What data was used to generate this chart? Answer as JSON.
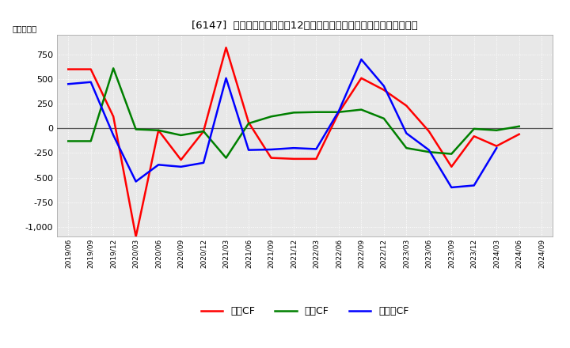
{
  "title": "[6147]  キャッシュフローの12か月移動合計の対前年同期増減額の推移",
  "ylabel": "（百万円）",
  "background_color": "#ffffff",
  "plot_bg_color": "#e8e8e8",
  "grid_color": "#ffffff",
  "x_labels": [
    "2019/06",
    "2019/09",
    "2019/12",
    "2020/03",
    "2020/06",
    "2020/09",
    "2020/12",
    "2021/03",
    "2021/06",
    "2021/09",
    "2021/12",
    "2022/03",
    "2022/06",
    "2022/09",
    "2022/12",
    "2023/03",
    "2023/06",
    "2023/09",
    "2023/12",
    "2024/03",
    "2024/06",
    "2024/09"
  ],
  "eigyo_cf": [
    600,
    600,
    120,
    -1100,
    -20,
    -320,
    -30,
    820,
    60,
    -300,
    -310,
    -310,
    160,
    510,
    390,
    230,
    -30,
    -390,
    -80,
    -180,
    -60,
    null
  ],
  "toshi_cf": [
    -130,
    -130,
    610,
    -10,
    -20,
    -70,
    -30,
    -300,
    50,
    120,
    160,
    165,
    165,
    190,
    100,
    -200,
    -240,
    -260,
    -5,
    -20,
    20,
    null
  ],
  "free_cf": [
    450,
    470,
    -70,
    -540,
    -370,
    -390,
    -350,
    510,
    -220,
    -215,
    -200,
    -210,
    175,
    700,
    430,
    -50,
    -220,
    -600,
    -580,
    -200,
    null,
    null
  ],
  "ylim": [
    -1100,
    950
  ],
  "yticks": [
    -1000,
    -750,
    -500,
    -250,
    0,
    250,
    500,
    750
  ],
  "line_colors": {
    "eigyo": "#ff0000",
    "toshi": "#008000",
    "free": "#0000ff"
  },
  "legend_labels": [
    "営業CF",
    "投資CF",
    "フリーCF"
  ]
}
